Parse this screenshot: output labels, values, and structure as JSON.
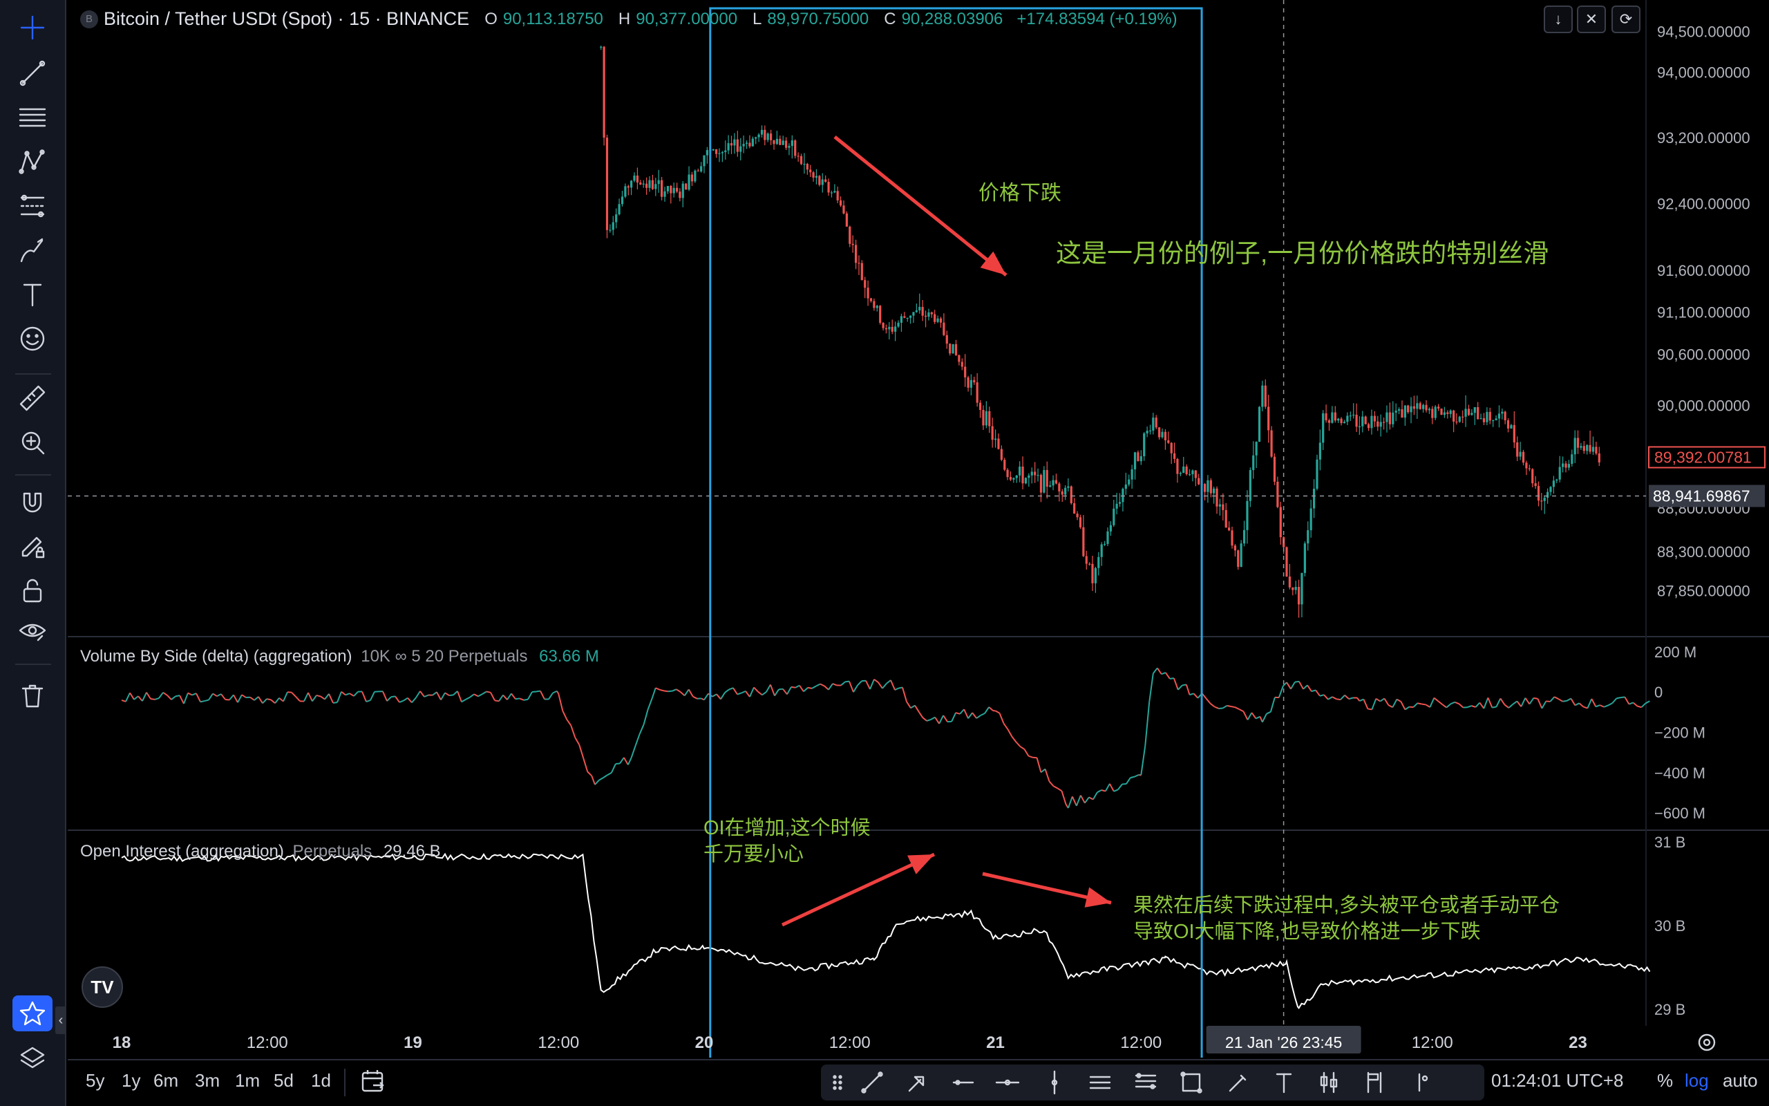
{
  "header": {
    "symbol_badge": "B",
    "title": "Bitcoin / Tether USDt (Spot) · 15 · BINANCE",
    "ohlc": {
      "o_label": "O",
      "o": "90,113.18750",
      "h_label": "H",
      "h": "90,377.00000",
      "l_label": "L",
      "l": "89,970.75000",
      "c_label": "C",
      "c": "90,288.03906",
      "change": "+174.83594 (+0.19%)"
    },
    "buttons": [
      "arrow-down",
      "collapse",
      "maximize"
    ]
  },
  "price_axis": {
    "ticks": [
      "94,500.00000",
      "94,000.00000",
      "93,200.00000",
      "92,400.00000",
      "91,600.00000",
      "91,100.00000",
      "90,600.00000",
      "90,000.00000",
      "88,800.00000",
      "88,300.00000",
      "87,850.00000"
    ],
    "last_price": "89,392.00781",
    "crosshair_price": "88,941.69867"
  },
  "volume_pane": {
    "title": "Volume By Side (delta) (aggregation)",
    "params": "10K ∞ 5 20 Perpetuals",
    "value": "63.66 M",
    "ticks": [
      "200 M",
      "0",
      "−200 M",
      "−400 M",
      "−600 M"
    ]
  },
  "oi_pane": {
    "title": "Open Interest (aggregation)",
    "params": "Perpetuals",
    "value": "29.46 B",
    "ticks": [
      "31 B",
      "30 B",
      "29 B"
    ]
  },
  "time_axis": {
    "labels": [
      "18",
      "12:00",
      "19",
      "12:00",
      "20",
      "12:00",
      "21",
      "12:00",
      "12:00",
      "23"
    ],
    "crosshair_time": "21 Jan '26   23:45"
  },
  "annotations": {
    "price_drop": "价格下跌",
    "january_example": "这是一月份的例子,一月份价格跌的特别丝滑",
    "oi_increase_1": "OI在增加,这个时候",
    "oi_increase_2": "千万要小心",
    "oi_drop_1": "果然在后续下跌过程中,多头被平仓或者手动平仓",
    "oi_drop_2": "导致OI大幅下降,也导致价格进一步下跌"
  },
  "tv_logo": "TV",
  "bottom_bar": {
    "ranges": [
      "5y",
      "1y",
      "6m",
      "3m",
      "1m",
      "5d",
      "1d"
    ],
    "clock": "01:24:01 UTC+8",
    "percent": "%",
    "log": "log",
    "auto": "auto"
  },
  "left_toolbar": {
    "tools": [
      "crosshair-icon",
      "trend-line-icon",
      "fib-lines-icon",
      "pattern-icon",
      "measure-lines-icon",
      "brush-icon",
      "text-icon",
      "emoji-icon",
      "ruler-icon",
      "zoom-in-icon",
      "magnet-icon",
      "lock-drawing-icon",
      "lock-icon",
      "eye-icon",
      "trash-icon",
      "star-icon",
      "layers-icon"
    ]
  },
  "colors": {
    "background": "#000000",
    "up": "#26a69a",
    "down": "#ef5350",
    "highlight_box": "#29a3e0",
    "annotation": "#8ec63f",
    "arrow": "#ef4040",
    "accent": "#2962ff"
  },
  "chart_data": [
    {
      "type": "candlestick",
      "title": "Bitcoin / Tether USDt (Spot) · 15 · BINANCE",
      "x": [
        "18",
        "19",
        "20",
        "21",
        "22",
        "23"
      ],
      "price_path": [
        {
          "t": "19 15:30",
          "price": 94300
        },
        {
          "t": "19 16:00",
          "price": 92100
        },
        {
          "t": "19 18:00",
          "price": 92700
        },
        {
          "t": "19 22:00",
          "price": 92500
        },
        {
          "t": "20 00:00",
          "price": 93000
        },
        {
          "t": "20 02:00",
          "price": 93050
        },
        {
          "t": "20 05:00",
          "price": 93250
        },
        {
          "t": "20 07:00",
          "price": 93100
        },
        {
          "t": "20 09:00",
          "price": 92700
        },
        {
          "t": "20 11:00",
          "price": 92500
        },
        {
          "t": "20 13:00",
          "price": 91500
        },
        {
          "t": "20 15:00",
          "price": 90850
        },
        {
          "t": "20 17:00",
          "price": 91100
        },
        {
          "t": "20 19:00",
          "price": 91050
        },
        {
          "t": "20 22:00",
          "price": 90250
        },
        {
          "t": "21 01:00",
          "price": 89200
        },
        {
          "t": "21 06:00",
          "price": 89050
        },
        {
          "t": "21 08:00",
          "price": 87950
        },
        {
          "t": "21 10:00",
          "price": 88850
        },
        {
          "t": "21 13:00",
          "price": 89850
        },
        {
          "t": "21 15:00",
          "price": 89250
        },
        {
          "t": "21 18:00",
          "price": 89000
        },
        {
          "t": "21 20:00",
          "price": 88150
        },
        {
          "t": "21 22:00",
          "price": 90200
        },
        {
          "t": "22 00:00",
          "price": 88000
        },
        {
          "t": "22 01:00",
          "price": 87800
        },
        {
          "t": "22 03:00",
          "price": 89900
        },
        {
          "t": "22 06:00",
          "price": 89800
        },
        {
          "t": "22 10:00",
          "price": 89950
        },
        {
          "t": "22 14:00",
          "price": 89900
        },
        {
          "t": "22 18:00",
          "price": 89850
        },
        {
          "t": "22 21:00",
          "price": 88900
        },
        {
          "t": "23 00:00",
          "price": 89550
        },
        {
          "t": "23 02:00",
          "price": 89392
        }
      ],
      "ylim": [
        87600,
        94700
      ],
      "log_scale": true
    },
    {
      "type": "line",
      "title": "Volume By Side (delta) (aggregation)",
      "unit": "M",
      "points": [
        {
          "t": "18 00:00",
          "v": -30
        },
        {
          "t": "19 12:00",
          "v": -20
        },
        {
          "t": "19 15:00",
          "v": -470
        },
        {
          "t": "19 18:00",
          "v": -320
        },
        {
          "t": "19 20:00",
          "v": 40
        },
        {
          "t": "20 00:00",
          "v": -10
        },
        {
          "t": "20 16:00",
          "v": 40
        },
        {
          "t": "20 18:00",
          "v": -140
        },
        {
          "t": "21 00:00",
          "v": -90
        },
        {
          "t": "21 06:00",
          "v": -550
        },
        {
          "t": "21 12:00",
          "v": -420
        },
        {
          "t": "21 13:00",
          "v": 110
        },
        {
          "t": "21 16:00",
          "v": 0
        },
        {
          "t": "21 22:00",
          "v": -140
        },
        {
          "t": "22 00:00",
          "v": 50
        },
        {
          "t": "22 06:00",
          "v": -60
        },
        {
          "t": "23 06:00",
          "v": -50
        }
      ],
      "ylim": [
        -620,
        210
      ]
    },
    {
      "type": "line",
      "title": "Open Interest (aggregation)",
      "unit": "B",
      "points": [
        {
          "t": "18 00:00",
          "v": 30.8
        },
        {
          "t": "19 14:00",
          "v": 30.83
        },
        {
          "t": "19 15:30",
          "v": 29.2
        },
        {
          "t": "19 20:00",
          "v": 29.7
        },
        {
          "t": "20 00:00",
          "v": 29.75
        },
        {
          "t": "20 08:00",
          "v": 29.47
        },
        {
          "t": "20 14:00",
          "v": 29.6
        },
        {
          "t": "20 16:00",
          "v": 30.05
        },
        {
          "t": "20 22:00",
          "v": 30.15
        },
        {
          "t": "21 00:00",
          "v": 29.85
        },
        {
          "t": "21 04:00",
          "v": 29.95
        },
        {
          "t": "21 06:00",
          "v": 29.4
        },
        {
          "t": "21 14:00",
          "v": 29.6
        },
        {
          "t": "21 18:00",
          "v": 29.42
        },
        {
          "t": "22 00:00",
          "v": 29.55
        },
        {
          "t": "22 01:00",
          "v": 29.0
        },
        {
          "t": "22 03:00",
          "v": 29.3
        },
        {
          "t": "22 20:00",
          "v": 29.5
        },
        {
          "t": "23 00:00",
          "v": 29.6
        },
        {
          "t": "23 06:00",
          "v": 29.46
        }
      ],
      "ylim": [
        28.95,
        31.0
      ]
    }
  ]
}
